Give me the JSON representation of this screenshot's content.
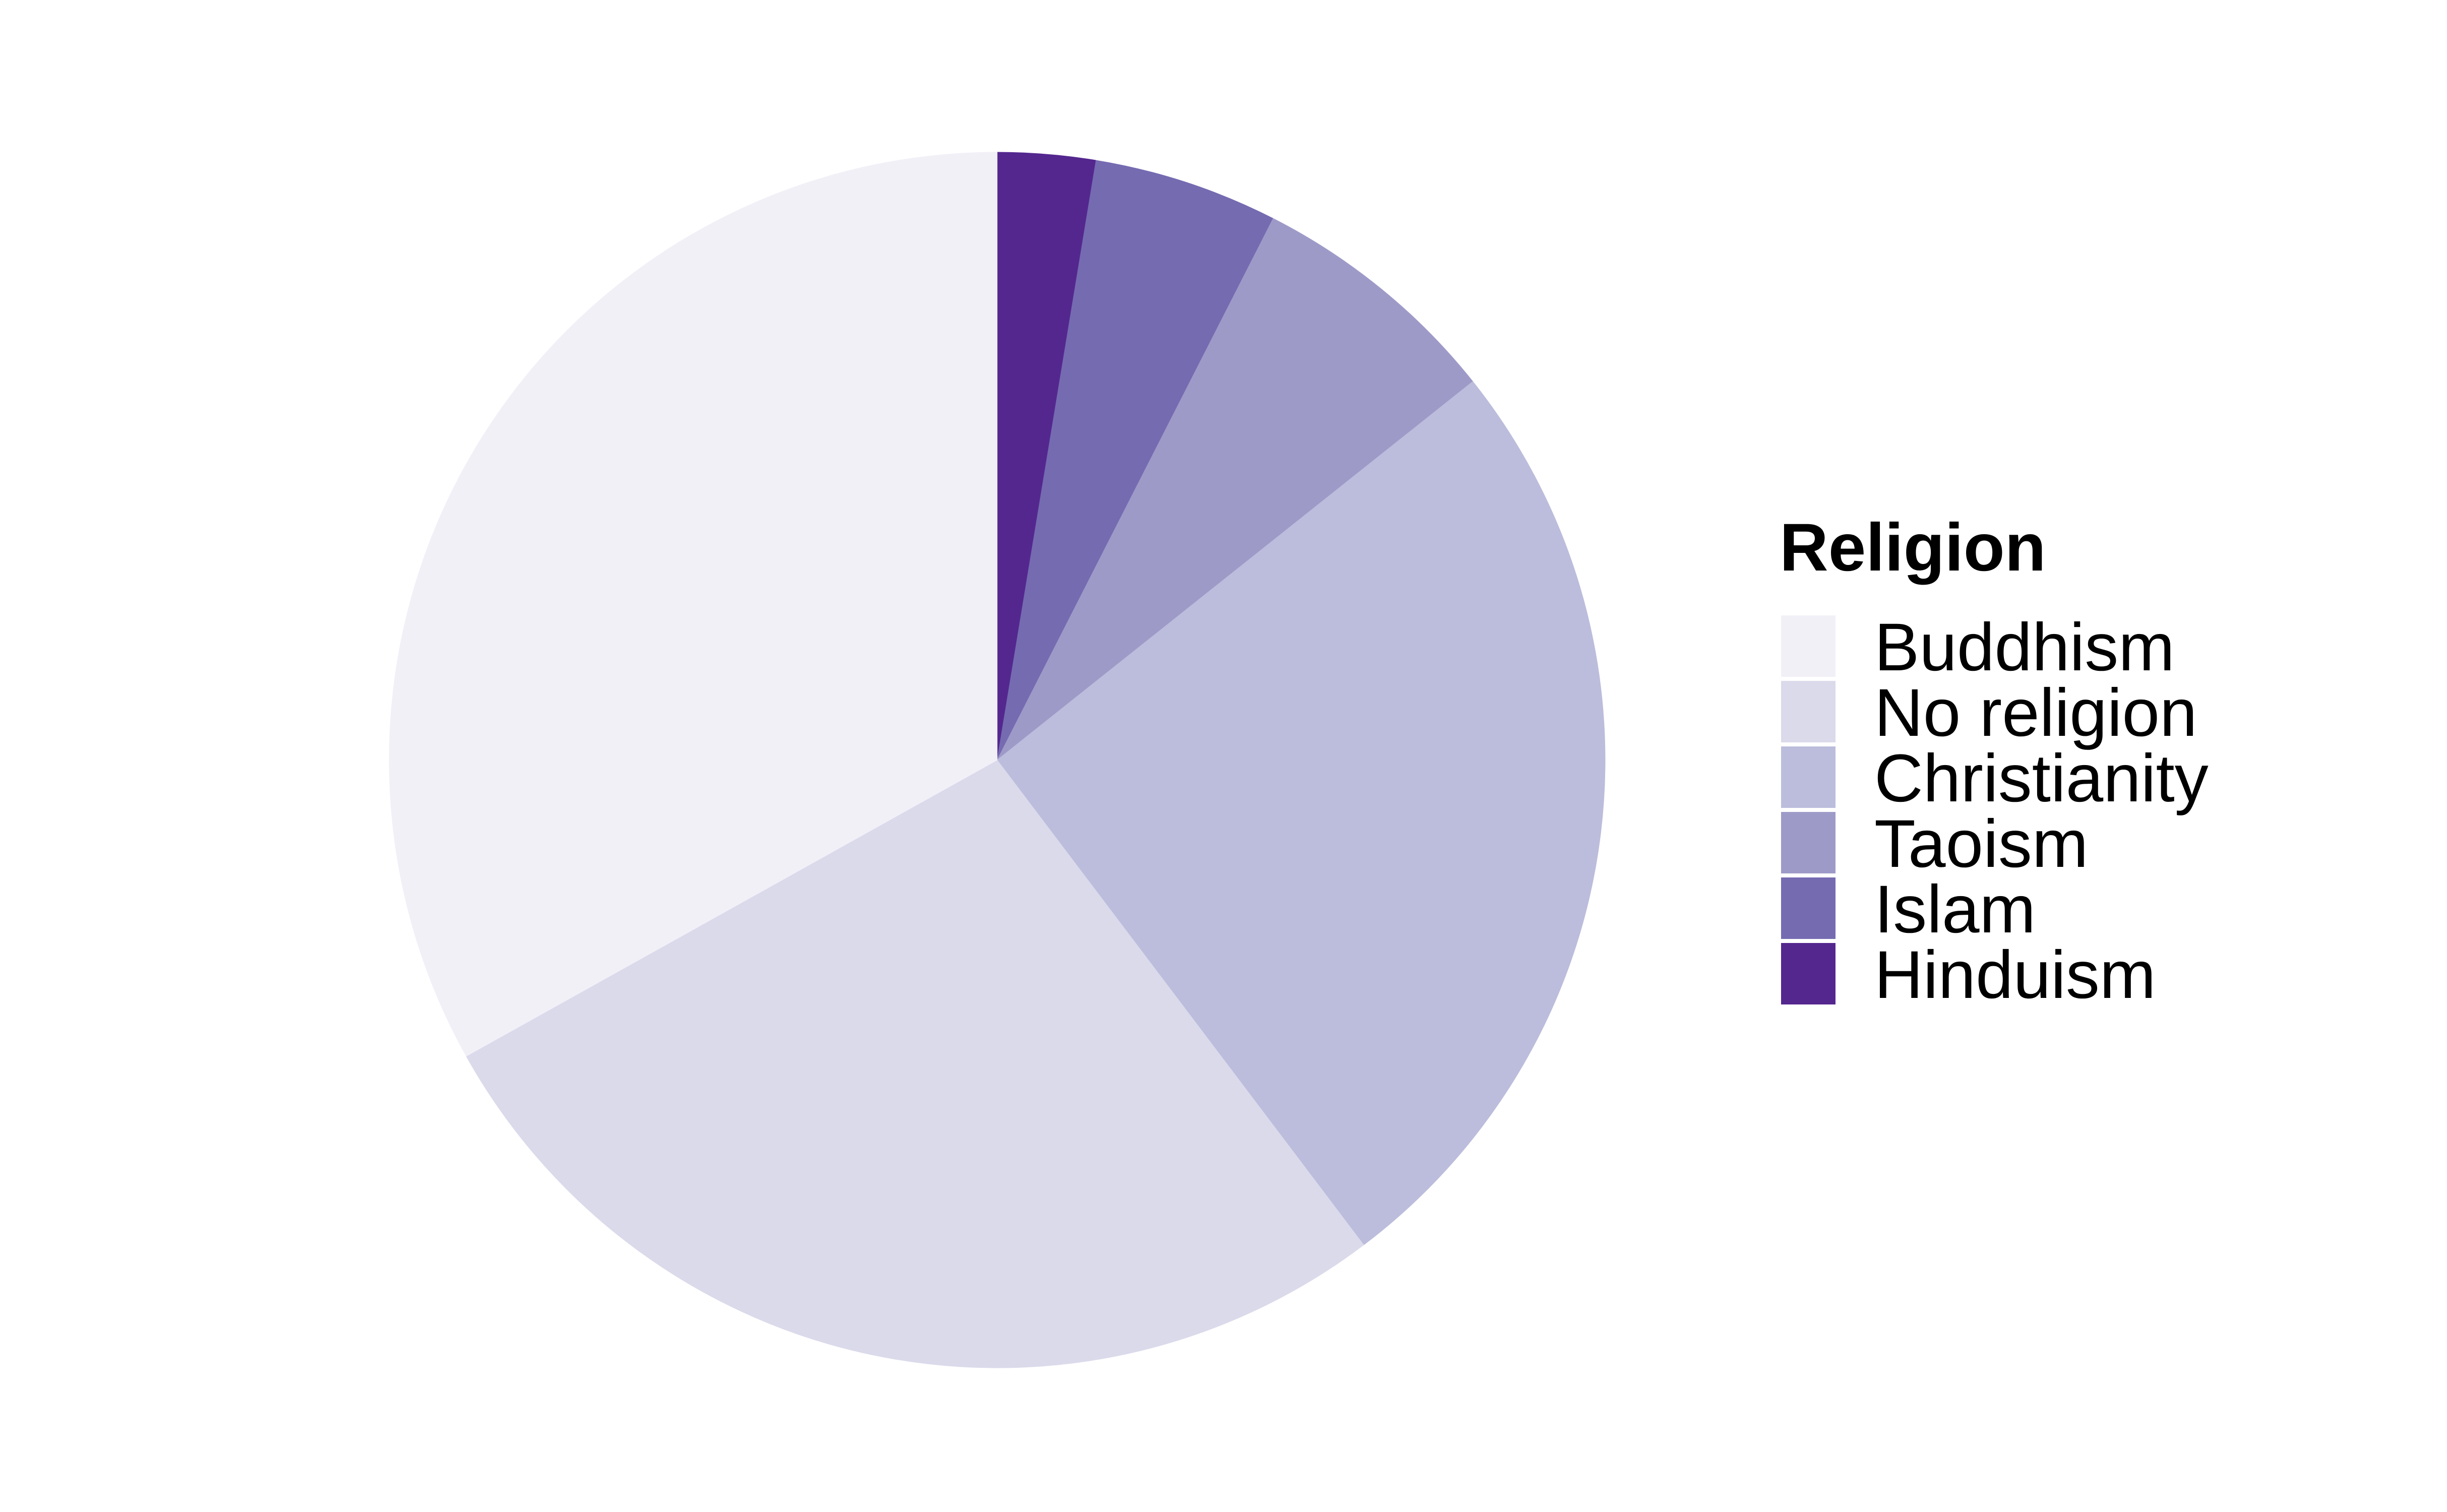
{
  "chart_data": {
    "type": "pie",
    "legend_title": "Religion",
    "legend_position": "right",
    "start": "top",
    "direction": "clockwise",
    "unit": "percent",
    "slices": [
      {
        "label": "Hinduism",
        "value": 2.6,
        "color": "#54278f"
      },
      {
        "label": "Islam",
        "value": 4.9,
        "color": "#756bb1"
      },
      {
        "label": "Taoism",
        "value": 6.8,
        "color": "#9e9ac8"
      },
      {
        "label": "Christianity",
        "value": 25.4,
        "color": "#bcbddc"
      },
      {
        "label": "No religion",
        "value": 27.2,
        "color": "#dadaeb"
      },
      {
        "label": "Buddhism",
        "value": 33.1,
        "color": "#f2f0f7"
      }
    ],
    "legend_order": [
      "Buddhism",
      "No religion",
      "Christianity",
      "Taoism",
      "Islam",
      "Hinduism"
    ]
  }
}
